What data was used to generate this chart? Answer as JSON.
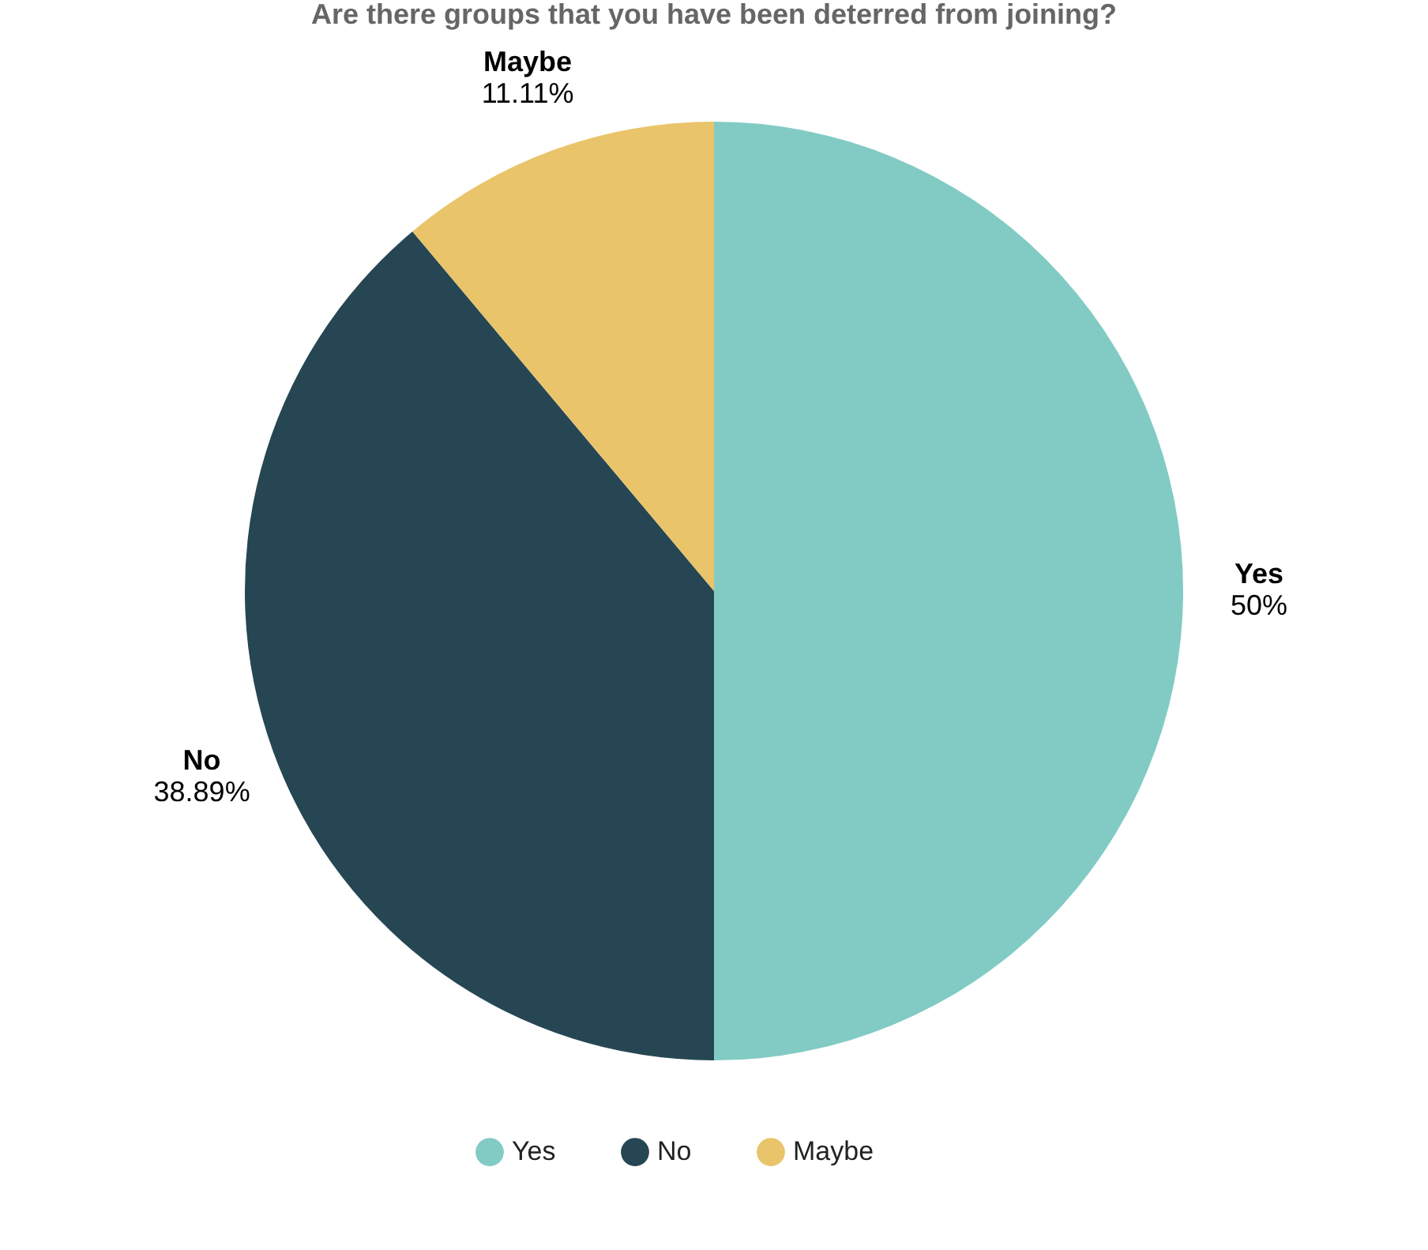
{
  "chart_data": {
    "type": "pie",
    "title": "Are there groups that you have been deterred from joining?",
    "categories": [
      "Yes",
      "No",
      "Maybe"
    ],
    "values": [
      50,
      38.89,
      11.11
    ],
    "value_labels": [
      "50%",
      "38.89%",
      "11.11%"
    ],
    "colors": [
      "#82cbc4",
      "#264653",
      "#e9c46a"
    ],
    "legend": "bottom"
  }
}
